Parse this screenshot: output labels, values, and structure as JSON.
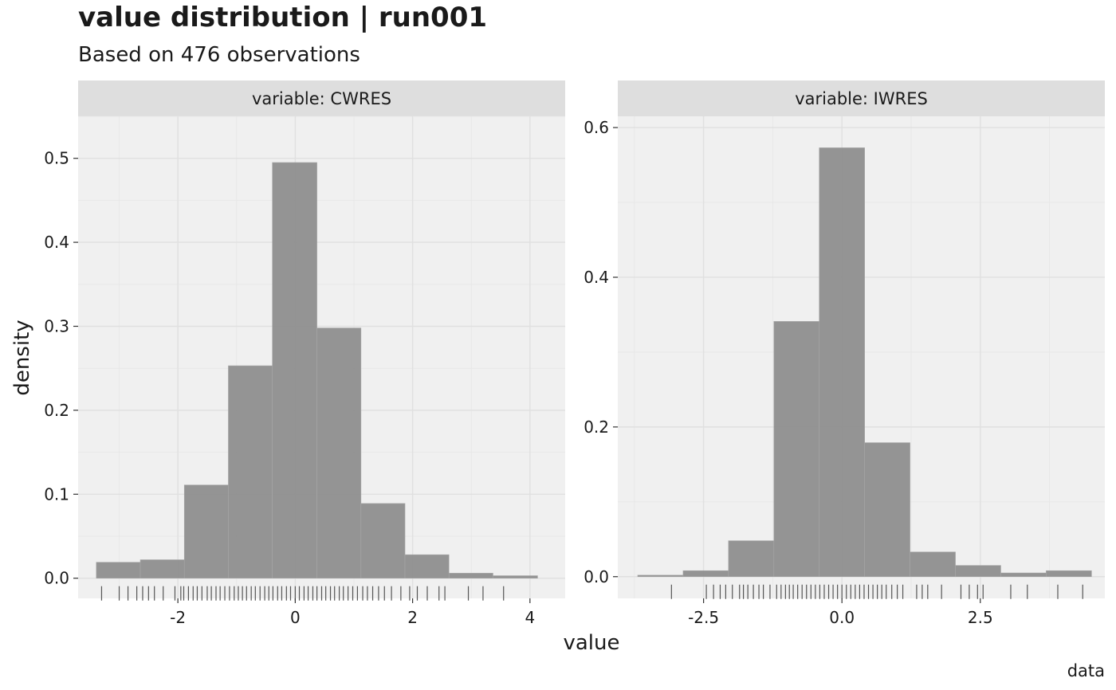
{
  "title": "value distribution | run001",
  "subtitle": "Based on 476 observations",
  "caption": "data",
  "colors": {
    "panel_background": "#f0f0f0",
    "strip_background": "#dedede",
    "grid": "#e0e0e0",
    "bar_fill": "#8c8c8c",
    "rug": "#555555"
  },
  "chart_data": {
    "type": "histogram",
    "xlabel": "value",
    "ylabel": "density",
    "facet_prefix": "variable: ",
    "panels": [
      {
        "name": "CWRES",
        "strip_label": "variable: CWRES",
        "xlim": [
          -3.7,
          4.6
        ],
        "ylim": [
          -0.024,
          0.55
        ],
        "x_ticks": [
          -2,
          0,
          2,
          4
        ],
        "x_tick_labels": [
          "-2",
          "0",
          "2",
          "4"
        ],
        "y_ticks": [
          0.0,
          0.1,
          0.2,
          0.3,
          0.4,
          0.5
        ],
        "y_tick_labels": [
          "0.0",
          "0.1",
          "0.2",
          "0.3",
          "0.4",
          "0.5"
        ],
        "bin_width": 0.75,
        "bins": [
          {
            "x0": -3.39,
            "x1": -2.64,
            "density": 0.019
          },
          {
            "x0": -2.64,
            "x1": -1.89,
            "density": 0.022
          },
          {
            "x0": -1.89,
            "x1": -1.14,
            "density": 0.111
          },
          {
            "x0": -1.14,
            "x1": -0.39,
            "density": 0.253
          },
          {
            "x0": -0.39,
            "x1": 0.37,
            "density": 0.495
          },
          {
            "x0": 0.37,
            "x1": 1.12,
            "density": 0.298
          },
          {
            "x0": 1.12,
            "x1": 1.87,
            "density": 0.089
          },
          {
            "x0": 1.87,
            "x1": 2.62,
            "density": 0.028
          },
          {
            "x0": 2.62,
            "x1": 3.37,
            "density": 0.006
          },
          {
            "x0": 3.37,
            "x1": 4.13,
            "density": 0.003
          }
        ],
        "rug": [
          -3.3,
          -3.0,
          -2.85,
          -2.7,
          -2.6,
          -2.5,
          -2.4,
          -2.25,
          -2.05,
          -1.95,
          -1.9,
          -1.82,
          -1.74,
          -1.67,
          -1.59,
          -1.5,
          -1.43,
          -1.35,
          -1.28,
          -1.2,
          -1.12,
          -1.04,
          -0.97,
          -0.9,
          -0.83,
          -0.75,
          -0.68,
          -0.6,
          -0.52,
          -0.45,
          -0.38,
          -0.3,
          -0.23,
          -0.15,
          -0.08,
          0.0,
          0.07,
          0.15,
          0.22,
          0.3,
          0.37,
          0.45,
          0.52,
          0.6,
          0.67,
          0.75,
          0.82,
          0.9,
          0.98,
          1.06,
          1.15,
          1.23,
          1.32,
          1.42,
          1.52,
          1.64,
          1.8,
          1.95,
          2.08,
          2.25,
          2.45,
          2.55,
          2.95,
          3.2,
          3.55
        ]
      },
      {
        "name": "IWRES",
        "strip_label": "variable: IWRES",
        "xlim": [
          -4.05,
          4.75
        ],
        "ylim": [
          -0.029,
          0.615
        ],
        "x_ticks": [
          -2.5,
          0.0,
          2.5
        ],
        "x_tick_labels": [
          "-2.5",
          "0.0",
          "2.5"
        ],
        "y_ticks": [
          0.0,
          0.2,
          0.4,
          0.6
        ],
        "y_tick_labels": [
          "0.0",
          "0.2",
          "0.4",
          "0.6"
        ],
        "bin_width": 0.82,
        "bins": [
          {
            "x0": -3.69,
            "x1": -2.87,
            "density": 0.002
          },
          {
            "x0": -2.87,
            "x1": -2.05,
            "density": 0.008
          },
          {
            "x0": -2.05,
            "x1": -1.23,
            "density": 0.048
          },
          {
            "x0": -1.23,
            "x1": -0.41,
            "density": 0.341
          },
          {
            "x0": -0.41,
            "x1": 0.41,
            "density": 0.573
          },
          {
            "x0": 0.41,
            "x1": 1.23,
            "density": 0.179
          },
          {
            "x0": 1.23,
            "x1": 2.05,
            "density": 0.033
          },
          {
            "x0": 2.05,
            "x1": 2.87,
            "density": 0.015
          },
          {
            "x0": 2.87,
            "x1": 3.69,
            "density": 0.005
          },
          {
            "x0": 3.69,
            "x1": 4.51,
            "density": 0.008
          }
        ],
        "rug": [
          -3.08,
          -2.45,
          -2.32,
          -2.2,
          -2.1,
          -1.98,
          -1.85,
          -1.78,
          -1.7,
          -1.6,
          -1.5,
          -1.42,
          -1.3,
          -1.18,
          -1.1,
          -1.02,
          -0.95,
          -0.88,
          -0.8,
          -0.72,
          -0.64,
          -0.56,
          -0.48,
          -0.4,
          -0.32,
          -0.24,
          -0.16,
          -0.08,
          0.0,
          0.08,
          0.16,
          0.24,
          0.32,
          0.4,
          0.48,
          0.56,
          0.64,
          0.72,
          0.8,
          0.9,
          1.0,
          1.1,
          1.35,
          1.45,
          1.55,
          1.8,
          2.15,
          2.3,
          2.45,
          2.55,
          3.05,
          3.35,
          3.9,
          4.35
        ]
      }
    ]
  }
}
